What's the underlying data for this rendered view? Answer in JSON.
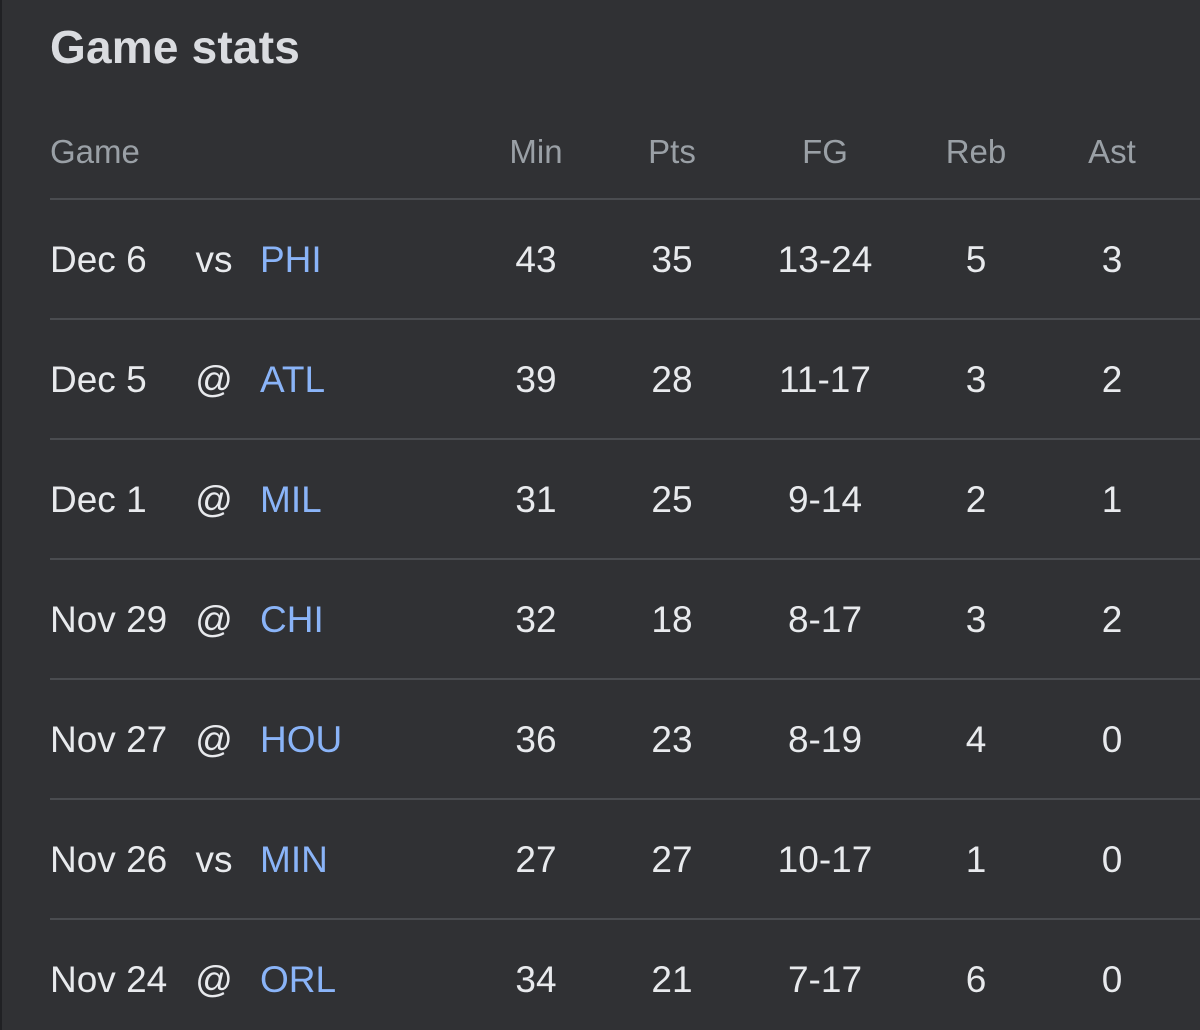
{
  "title": "Game stats",
  "headers": {
    "game": "Game",
    "min": "Min",
    "pts": "Pts",
    "fg": "FG",
    "reb": "Reb",
    "ast": "Ast"
  },
  "rows": [
    {
      "date": "Dec 6",
      "loc": "vs",
      "opp": "PHI",
      "min": "43",
      "pts": "35",
      "fg": "13-24",
      "reb": "5",
      "ast": "3"
    },
    {
      "date": "Dec 5",
      "loc": "@",
      "opp": "ATL",
      "min": "39",
      "pts": "28",
      "fg": "11-17",
      "reb": "3",
      "ast": "2"
    },
    {
      "date": "Dec 1",
      "loc": "@",
      "opp": "MIL",
      "min": "31",
      "pts": "25",
      "fg": "9-14",
      "reb": "2",
      "ast": "1"
    },
    {
      "date": "Nov 29",
      "loc": "@",
      "opp": "CHI",
      "min": "32",
      "pts": "18",
      "fg": "8-17",
      "reb": "3",
      "ast": "2"
    },
    {
      "date": "Nov 27",
      "loc": "@",
      "opp": "HOU",
      "min": "36",
      "pts": "23",
      "fg": "8-19",
      "reb": "4",
      "ast": "0"
    },
    {
      "date": "Nov 26",
      "loc": "vs",
      "opp": "MIN",
      "min": "27",
      "pts": "27",
      "fg": "10-17",
      "reb": "1",
      "ast": "0"
    },
    {
      "date": "Nov 24",
      "loc": "@",
      "opp": "ORL",
      "min": "34",
      "pts": "21",
      "fg": "7-17",
      "reb": "6",
      "ast": "0"
    }
  ],
  "colors": {
    "background": "#303134",
    "text": "#e8eaed",
    "header_text": "#9aa0a6",
    "link": "#8ab4f8",
    "divider": "#4a4c50"
  }
}
